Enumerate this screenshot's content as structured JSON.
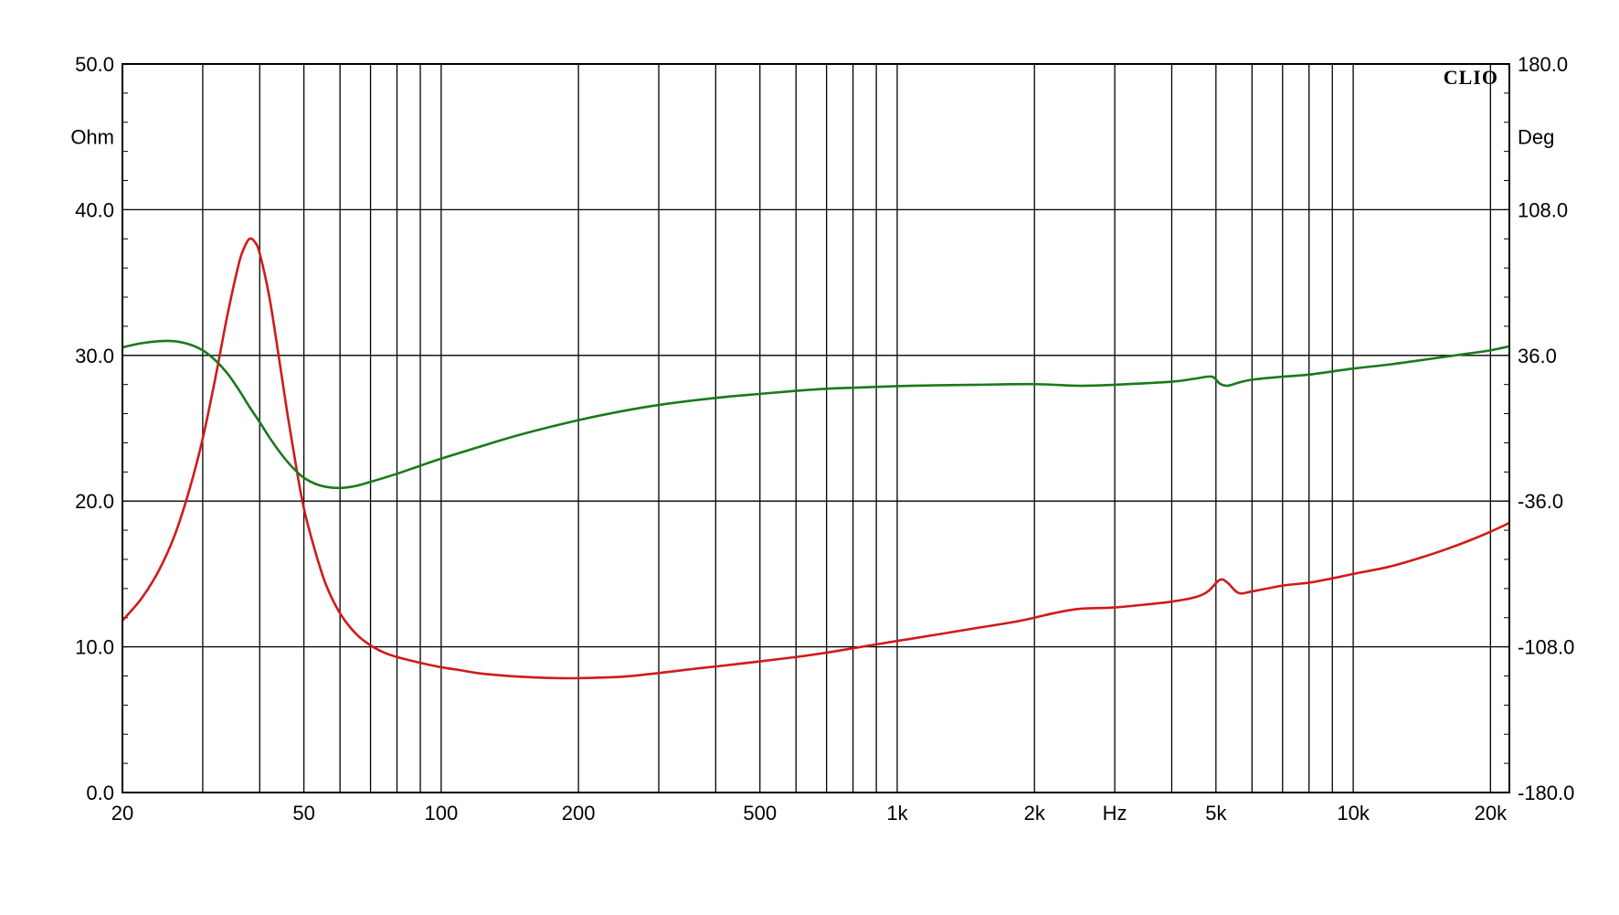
{
  "chart_data": {
    "type": "line",
    "brand": "CLIO",
    "x_scale": "log",
    "xlim": [
      20,
      22000
    ],
    "x_unit_label": "Hz",
    "x_ticks": [
      {
        "value": 20,
        "label": "20"
      },
      {
        "value": 50,
        "label": "50"
      },
      {
        "value": 100,
        "label": "100"
      },
      {
        "value": 200,
        "label": "200"
      },
      {
        "value": 500,
        "label": "500"
      },
      {
        "value": 1000,
        "label": "1k"
      },
      {
        "value": 2000,
        "label": "2k"
      },
      {
        "value": 5000,
        "label": "5k"
      },
      {
        "value": 10000,
        "label": "10k"
      },
      {
        "value": 20000,
        "label": "20k"
      }
    ],
    "left_axis": {
      "unit_label": "Ohm",
      "ylim": [
        0,
        50
      ],
      "ticks": [
        {
          "value": 0,
          "label": "0.0"
        },
        {
          "value": 10,
          "label": "10.0"
        },
        {
          "value": 20,
          "label": "20.0"
        },
        {
          "value": 30,
          "label": "30.0"
        },
        {
          "value": 40,
          "label": "40.0"
        },
        {
          "value": 50,
          "label": "50.0"
        }
      ]
    },
    "right_axis": {
      "unit_label": "Deg",
      "ylim": [
        -180,
        180
      ],
      "ticks": [
        {
          "value": -180,
          "label": "-180.0"
        },
        {
          "value": -108,
          "label": "-108.0"
        },
        {
          "value": -36,
          "label": "-36.0"
        },
        {
          "value": 36,
          "label": "36.0"
        },
        {
          "value": 108,
          "label": "108.0"
        },
        {
          "value": 180,
          "label": "180.0"
        }
      ]
    },
    "grid": true,
    "series": [
      {
        "axis": "left",
        "color": "#d11a1a",
        "x": [
          20,
          22,
          24,
          26,
          28,
          30,
          32,
          34,
          36,
          37,
          38,
          39,
          40,
          42,
          44,
          46,
          48,
          50,
          53,
          56,
          60,
          65,
          70,
          75,
          80,
          90,
          100,
          110,
          120,
          140,
          160,
          180,
          200,
          250,
          300,
          350,
          400,
          500,
          600,
          700,
          800,
          1000,
          1200,
          1500,
          1800,
          2000,
          2200,
          2500,
          3000,
          3500,
          4000,
          4500,
          4800,
          5100,
          5300,
          5600,
          6000,
          7000,
          8000,
          9000,
          10000,
          12000,
          14000,
          16000,
          18000,
          20000,
          22000
        ],
        "y": [
          11.8,
          13.3,
          15.2,
          17.6,
          20.7,
          24.3,
          28.5,
          32.8,
          36.3,
          37.4,
          38.0,
          37.8,
          37.0,
          34.0,
          30.0,
          26.0,
          22.5,
          19.5,
          16.5,
          14.2,
          12.3,
          10.9,
          10.1,
          9.6,
          9.3,
          8.9,
          8.6,
          8.4,
          8.2,
          8.0,
          7.9,
          7.85,
          7.85,
          7.95,
          8.2,
          8.45,
          8.65,
          9.0,
          9.3,
          9.6,
          9.9,
          10.4,
          10.8,
          11.3,
          11.7,
          12.0,
          12.3,
          12.6,
          12.7,
          12.9,
          13.1,
          13.4,
          13.8,
          14.6,
          14.4,
          13.7,
          13.8,
          14.2,
          14.4,
          14.7,
          15.0,
          15.5,
          16.1,
          16.7,
          17.3,
          17.9,
          18.5
        ]
      },
      {
        "axis": "right",
        "color": "#1a7a1a",
        "x": [
          20,
          22,
          24,
          26,
          28,
          30,
          32,
          34,
          36,
          38,
          40,
          42,
          44,
          46,
          48,
          50,
          53,
          56,
          60,
          65,
          70,
          80,
          90,
          100,
          120,
          150,
          200,
          250,
          300,
          400,
          500,
          600,
          700,
          800,
          1000,
          1200,
          1500,
          2000,
          2500,
          3000,
          4000,
          4500,
          4900,
          5100,
          5300,
          5600,
          6000,
          7000,
          8000,
          10000,
          12000,
          15000,
          18000,
          20000,
          22000
        ],
        "y": [
          40.0,
          42.0,
          43.0,
          43.0,
          41.5,
          38.5,
          33.5,
          27.0,
          19.0,
          10.5,
          3.0,
          -4.5,
          -11.0,
          -16.5,
          -21.0,
          -24.5,
          -27.5,
          -29.0,
          -29.5,
          -28.5,
          -26.5,
          -22.5,
          -18.5,
          -15.0,
          -9.5,
          -3.0,
          4.0,
          8.5,
          11.5,
          15.0,
          17.0,
          18.5,
          19.5,
          20.0,
          20.8,
          21.2,
          21.5,
          21.8,
          21.0,
          21.5,
          23.0,
          24.5,
          25.5,
          22.0,
          21.0,
          22.5,
          24.0,
          25.5,
          26.5,
          29.5,
          31.5,
          34.5,
          37.0,
          38.5,
          40.5
        ]
      }
    ]
  }
}
